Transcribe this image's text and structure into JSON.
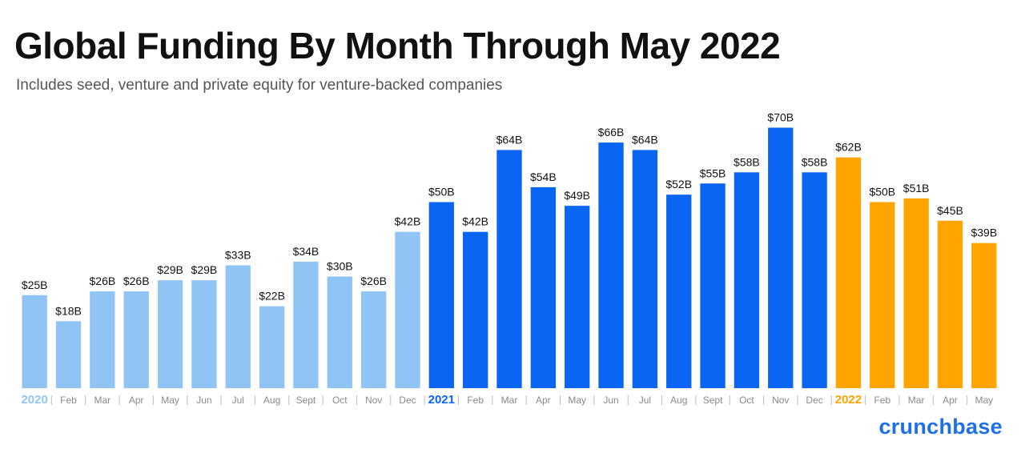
{
  "title": "Global Funding By Month Through May 2022",
  "subtitle": "Includes seed, venture and private equity for venture-backed companies",
  "brand": "crunchbase",
  "colors": {
    "y2020": "#90c4f5",
    "y2021": "#0a66f2",
    "y2022": "#ffa400",
    "value_label": "#111111",
    "month_label": "#8a8a8a"
  },
  "chart_data": {
    "type": "bar",
    "title": "Global Funding By Month Through May 2022",
    "subtitle": "Includes seed, venture and private equity for venture-backed companies",
    "xlabel": "",
    "ylabel": "",
    "unit": "$B",
    "ylim": [
      0,
      70
    ],
    "grid": false,
    "legend": "none",
    "categories": [
      "2020",
      "Feb",
      "Mar",
      "Apr",
      "May",
      "Jun",
      "Jul",
      "Aug",
      "Sept",
      "Oct",
      "Nov",
      "Dec",
      "2021",
      "Feb",
      "Mar",
      "Apr",
      "May",
      "Jun",
      "Jul",
      "Aug",
      "Sept",
      "Oct",
      "Nov",
      "Dec",
      "2022",
      "Feb",
      "Mar",
      "Apr",
      "May"
    ],
    "values": [
      25,
      18,
      26,
      26,
      29,
      29,
      33,
      22,
      34,
      30,
      26,
      42,
      50,
      42,
      64,
      54,
      49,
      66,
      64,
      52,
      55,
      58,
      70,
      58,
      62,
      50,
      51,
      45,
      39
    ],
    "labels": [
      "$25B",
      "$18B",
      "$26B",
      "$26B",
      "$29B",
      "$29B",
      "$33B",
      "$22B",
      "$34B",
      "$30B",
      "$26B",
      "$42B",
      "$50B",
      "$42B",
      "$64B",
      "$54B",
      "$49B",
      "$66B",
      "$64B",
      "$52B",
      "$55B",
      "$58B",
      "$70B",
      "$58B",
      "$62B",
      "$50B",
      "$51B",
      "$45B",
      "$39B"
    ],
    "series_year": [
      "2020",
      "2020",
      "2020",
      "2020",
      "2020",
      "2020",
      "2020",
      "2020",
      "2020",
      "2020",
      "2020",
      "2020",
      "2021",
      "2021",
      "2021",
      "2021",
      "2021",
      "2021",
      "2021",
      "2021",
      "2021",
      "2021",
      "2021",
      "2021",
      "2022",
      "2022",
      "2022",
      "2022",
      "2022"
    ]
  }
}
